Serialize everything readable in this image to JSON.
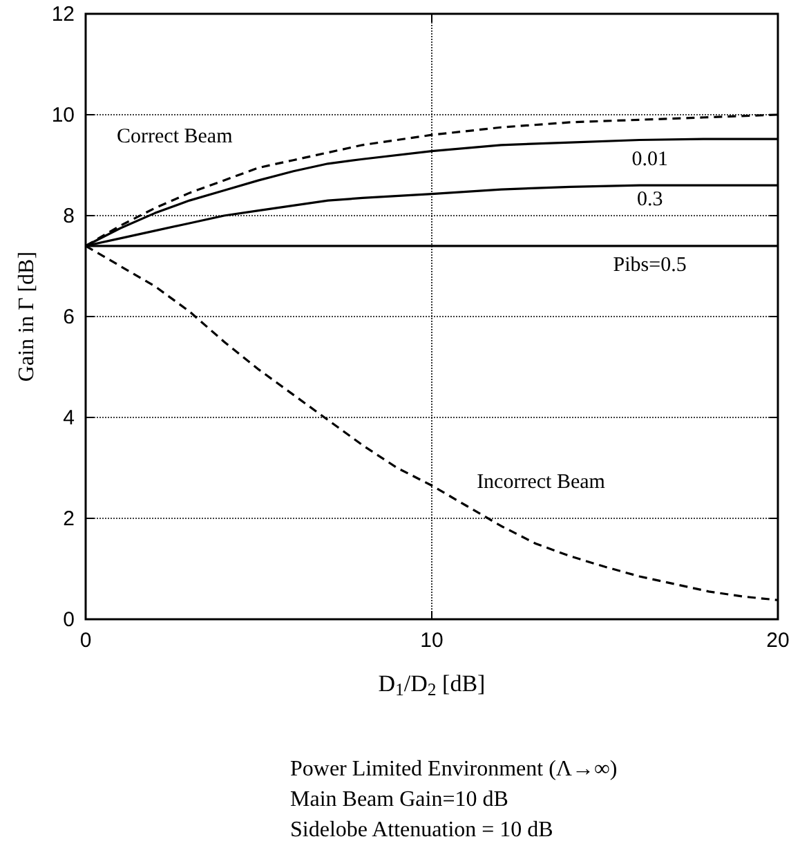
{
  "chart_data": {
    "type": "line",
    "xlabel": "D$_{1}$/D$_{2}$ [dB]",
    "ylabel": "Gain in Γ [dB]",
    "xlim": [
      0,
      20
    ],
    "xticks": [
      0,
      10,
      20
    ],
    "ylim": [
      0,
      12
    ],
    "yticks": [
      0,
      2,
      4,
      6,
      8,
      10,
      12
    ],
    "grid": true,
    "marker": "none",
    "series": [
      {
        "name": "Correct Beam",
        "color": "#000000",
        "line_style": "dashed",
        "x": [
          0,
          1,
          2,
          3,
          4,
          5,
          6,
          7,
          8,
          10,
          12,
          14,
          16,
          18,
          20
        ],
        "values": [
          7.4,
          7.8,
          8.15,
          8.45,
          8.7,
          8.95,
          9.1,
          9.25,
          9.4,
          9.6,
          9.75,
          9.85,
          9.9,
          9.95,
          10.0
        ]
      },
      {
        "name": "0.01",
        "color": "#000000",
        "line_style": "solid",
        "x": [
          0,
          1,
          2,
          3,
          4,
          5,
          6,
          7,
          8,
          10,
          12,
          14,
          16,
          18,
          20
        ],
        "values": [
          7.4,
          7.75,
          8.05,
          8.3,
          8.5,
          8.7,
          8.88,
          9.03,
          9.12,
          9.28,
          9.4,
          9.45,
          9.5,
          9.52,
          9.52
        ]
      },
      {
        "name": "0.3",
        "color": "#000000",
        "line_style": "solid",
        "x": [
          0,
          1,
          2,
          3,
          4,
          5,
          6,
          7,
          8,
          10,
          12,
          14,
          16,
          18,
          20
        ],
        "values": [
          7.4,
          7.55,
          7.7,
          7.85,
          8.0,
          8.1,
          8.2,
          8.3,
          8.35,
          8.43,
          8.52,
          8.57,
          8.6,
          8.6,
          8.6
        ]
      },
      {
        "name": "Pibs=0.5",
        "color": "#000000",
        "line_style": "solid",
        "x": [
          0,
          20
        ],
        "values": [
          7.4,
          7.4
        ]
      },
      {
        "name": "Incorrect Beam",
        "color": "#000000",
        "line_style": "dashed",
        "x": [
          0,
          1,
          2,
          3,
          4,
          5,
          6,
          7,
          8,
          9,
          10,
          11,
          12,
          13,
          14,
          15,
          16,
          17,
          18,
          19,
          20
        ],
        "values": [
          7.4,
          7.0,
          6.6,
          6.1,
          5.5,
          4.95,
          4.45,
          3.95,
          3.45,
          3.0,
          2.65,
          2.25,
          1.85,
          1.5,
          1.25,
          1.04,
          0.85,
          0.7,
          0.55,
          0.45,
          0.38
        ]
      }
    ],
    "annotations": [
      "Power Limited Environment (Λ→∞)",
      "Main Beam Gain=10 dB",
      "Sidelobe Attenuation = 10 dB"
    ]
  }
}
